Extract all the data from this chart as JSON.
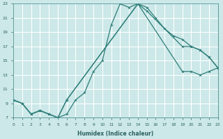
{
  "xlabel": "Humidex (Indice chaleur)",
  "xlim": [
    0,
    23
  ],
  "ylim": [
    7,
    23
  ],
  "xticks": [
    0,
    1,
    2,
    3,
    4,
    5,
    6,
    7,
    8,
    9,
    10,
    11,
    12,
    13,
    14,
    15,
    16,
    17,
    18,
    19,
    20,
    21,
    22,
    23
  ],
  "yticks": [
    7,
    9,
    11,
    13,
    15,
    17,
    19,
    21,
    23
  ],
  "background_color": "#cce8e8",
  "grid_color": "#ffffff",
  "line_color": "#2d7d78",
  "line1_x": [
    0,
    1,
    2,
    3,
    4,
    5,
    6,
    7,
    8,
    9,
    10,
    11,
    12,
    13,
    14,
    15,
    16,
    17,
    18,
    19,
    20,
    21,
    22,
    23
  ],
  "line1_y": [
    9.5,
    9.0,
    7.5,
    8.0,
    7.5,
    7.0,
    7.5,
    9.5,
    10.5,
    13.5,
    15.0,
    20.0,
    23.0,
    22.5,
    23.0,
    22.5,
    21.0,
    19.5,
    18.5,
    18.0,
    17.0,
    16.5,
    15.5,
    14.0
  ],
  "line2_x": [
    0,
    1,
    2,
    3,
    4,
    5,
    6,
    14,
    15,
    19,
    20,
    21,
    22,
    23
  ],
  "line2_y": [
    9.5,
    9.0,
    7.5,
    8.0,
    7.5,
    7.0,
    9.5,
    23.0,
    22.0,
    17.0,
    17.0,
    16.5,
    15.5,
    14.0
  ],
  "line3_x": [
    0,
    1,
    2,
    3,
    4,
    5,
    6,
    14,
    19,
    20,
    21,
    22,
    23
  ],
  "line3_y": [
    9.5,
    9.0,
    7.5,
    8.0,
    7.5,
    7.0,
    9.5,
    23.0,
    13.5,
    13.5,
    13.0,
    13.5,
    14.0
  ]
}
